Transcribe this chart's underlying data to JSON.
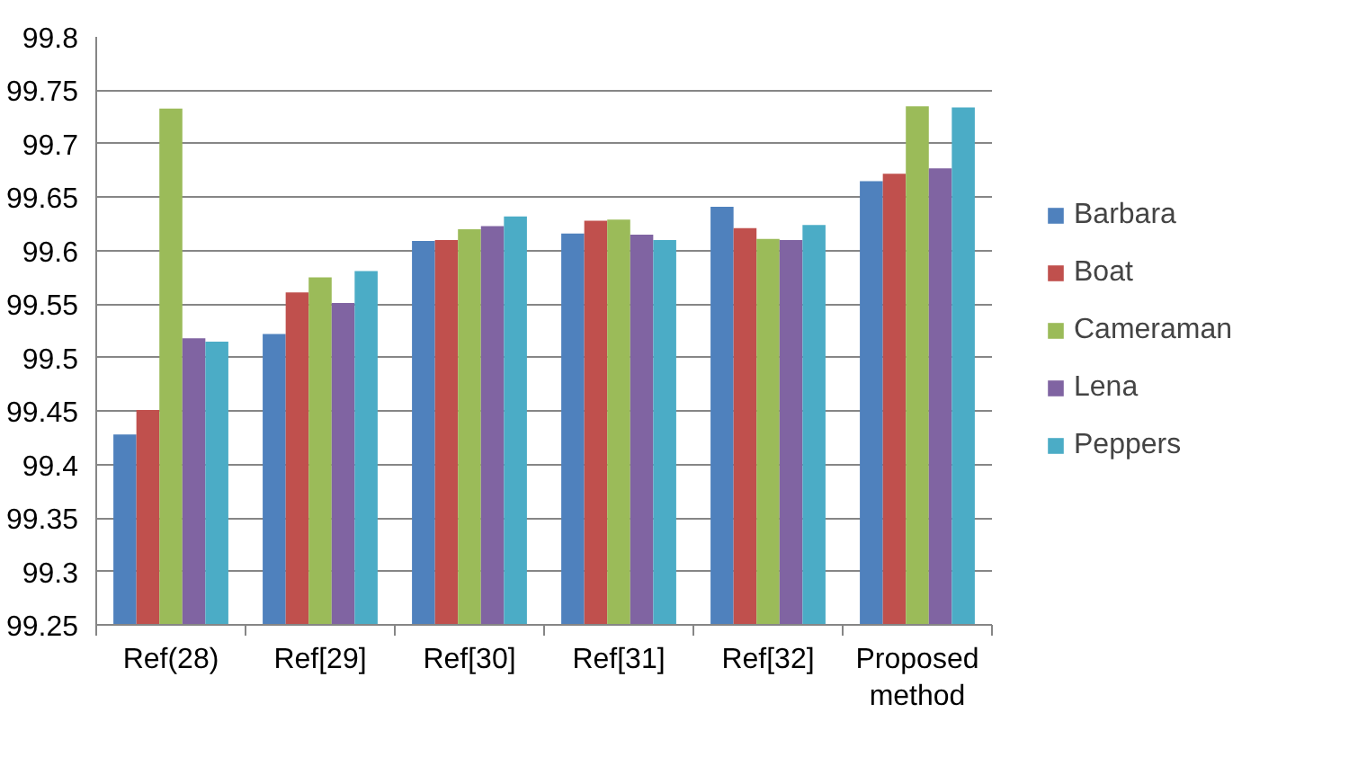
{
  "chart_data": {
    "type": "bar",
    "categories": [
      "Ref(28)",
      "Ref[29]",
      "Ref[30]",
      "Ref[31]",
      "Ref[32]",
      "Proposed method"
    ],
    "series": [
      {
        "name": "Barbara",
        "color": "#4f81bd",
        "values": [
          99.428,
          99.522,
          99.609,
          99.616,
          99.641,
          99.665
        ]
      },
      {
        "name": "Boat",
        "color": "#c0504d",
        "values": [
          99.451,
          99.561,
          99.61,
          99.628,
          99.621,
          99.672
        ]
      },
      {
        "name": "Cameraman",
        "color": "#9bbb59",
        "values": [
          99.733,
          99.575,
          99.62,
          99.629,
          99.611,
          99.735
        ]
      },
      {
        "name": "Lena",
        "color": "#8064a2",
        "values": [
          99.518,
          99.551,
          99.623,
          99.615,
          99.61,
          99.677
        ]
      },
      {
        "name": "Peppers",
        "color": "#4bacc6",
        "values": [
          99.515,
          99.581,
          99.632,
          99.61,
          99.624,
          99.734
        ]
      }
    ],
    "ylim": [
      99.25,
      99.8
    ],
    "yticks": [
      99.25,
      99.3,
      99.35,
      99.4,
      99.45,
      99.5,
      99.55,
      99.6,
      99.65,
      99.7,
      99.75,
      99.8
    ],
    "grid": "y",
    "legend": "right"
  }
}
